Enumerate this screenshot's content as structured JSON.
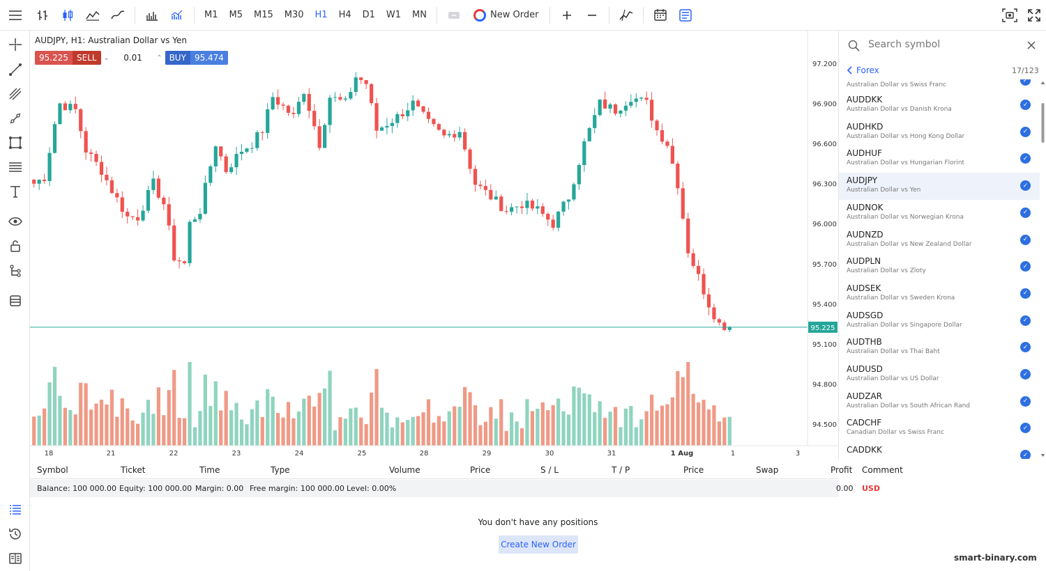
{
  "toolbar": {
    "timeframes": [
      "M1",
      "M5",
      "M15",
      "M30",
      "H1",
      "H4",
      "D1",
      "W1",
      "MN"
    ],
    "active_timeframe": "H1",
    "new_order_label": "New Order"
  },
  "chart": {
    "title": "AUDJPY, H1: Australian Dollar vs Yen",
    "sell_price": "95.225",
    "sell_label": "SELL",
    "lot": "0.01",
    "buy_label": "BUY",
    "buy_price": "95.474",
    "current_price_label": "95.225"
  },
  "chart_data": {
    "type": "candlestick",
    "title": "AUDJPY, H1: Australian Dollar vs Yen",
    "price_ticks": [
      "97.200",
      "96.900",
      "96.600",
      "96.300",
      "96.000",
      "95.700",
      "95.400",
      "95.100",
      "94.800",
      "94.500"
    ],
    "date_ticks": [
      "18",
      "21",
      "22",
      "23",
      "24",
      "25",
      "28",
      "29",
      "30",
      "31",
      "1 Aug",
      "1",
      "3"
    ],
    "ylim": [
      94.35,
      97.3
    ],
    "current_price": 95.225,
    "close_path": [
      [
        0,
        96.3
      ],
      [
        2,
        96.35
      ],
      [
        4,
        96.75
      ],
      [
        5,
        96.9
      ],
      [
        8,
        96.85
      ],
      [
        10,
        96.55
      ],
      [
        13,
        96.4
      ],
      [
        15,
        96.25
      ],
      [
        18,
        96.05
      ],
      [
        20,
        96.05
      ],
      [
        23,
        96.3
      ],
      [
        25,
        96.15
      ],
      [
        27,
        95.75
      ],
      [
        29,
        95.7
      ],
      [
        30,
        96.0
      ],
      [
        32,
        96.1
      ],
      [
        35,
        96.6
      ],
      [
        37,
        96.4
      ],
      [
        40,
        96.55
      ],
      [
        42,
        96.6
      ],
      [
        44,
        96.7
      ],
      [
        46,
        96.95
      ],
      [
        50,
        96.8
      ],
      [
        52,
        97.0
      ],
      [
        55,
        96.6
      ],
      [
        57,
        96.95
      ],
      [
        60,
        96.9
      ],
      [
        62,
        97.1
      ],
      [
        64,
        97.05
      ],
      [
        66,
        96.7
      ],
      [
        68,
        96.75
      ],
      [
        70,
        96.8
      ],
      [
        73,
        96.9
      ],
      [
        76,
        96.75
      ],
      [
        79,
        96.65
      ],
      [
        82,
        96.7
      ],
      [
        85,
        96.3
      ],
      [
        88,
        96.2
      ],
      [
        91,
        96.1
      ],
      [
        94,
        96.15
      ],
      [
        97,
        96.1
      ],
      [
        100,
        96.0
      ],
      [
        103,
        96.2
      ],
      [
        106,
        96.6
      ],
      [
        109,
        96.9
      ],
      [
        112,
        96.85
      ],
      [
        115,
        96.95
      ],
      [
        118,
        96.9
      ],
      [
        120,
        96.7
      ],
      [
        122,
        96.6
      ],
      [
        124,
        96.3
      ],
      [
        126,
        95.8
      ],
      [
        128,
        95.6
      ],
      [
        130,
        95.4
      ],
      [
        132,
        95.25
      ],
      [
        134,
        95.225
      ]
    ],
    "volume_levels": [
      0.3,
      0.6,
      0.9
    ],
    "bearish_color": "#ef9a86",
    "bullish_color": "#8fd4bf",
    "line_color": "#26a69a"
  },
  "positions": {
    "columns": [
      "Symbol",
      "Ticket",
      "Time",
      "Type",
      "Volume",
      "Price",
      "S / L",
      "T / P",
      "Price",
      "Swap",
      "Profit",
      "Comment"
    ],
    "balance_text": "Balance: 100 000.00",
    "equity_text": "Equity: 100 000.00",
    "margin_text": "Margin: 0.00",
    "free_margin_text": "Free margin: 100 000.00",
    "level_text": "Level: 0.00%",
    "profit_value": "0.00",
    "currency": "USD",
    "empty_message": "You don't have any positions",
    "create_label": "Create New Order"
  },
  "symbols_panel": {
    "search_placeholder": "Search symbol",
    "category": "Forex",
    "count": "17/123",
    "cut_top_desc": "Australian Dollar vs Swiss Franc",
    "items": [
      {
        "name": "AUDDKK",
        "desc": "Australian Dollar vs Danish Krona"
      },
      {
        "name": "AUDHKD",
        "desc": "Australian Dollar vs Hong Kong Dollar"
      },
      {
        "name": "AUDHUF",
        "desc": "Australian Dollar vs Hungarian Florint"
      },
      {
        "name": "AUDJPY",
        "desc": "Australian Dollar vs Yen"
      },
      {
        "name": "AUDNOK",
        "desc": "Australian Dollar vs Norwegian Krona"
      },
      {
        "name": "AUDNZD",
        "desc": "Australian Dollar vs New Zealand Dollar"
      },
      {
        "name": "AUDPLN",
        "desc": "Australian Dollar vs Zloty"
      },
      {
        "name": "AUDSEK",
        "desc": "Australian Dollar vs Sweden Krona"
      },
      {
        "name": "AUDSGD",
        "desc": "Australian Dollar vs Singapore Dollar"
      },
      {
        "name": "AUDTHB",
        "desc": "Australian Dollar vs Thai Baht"
      },
      {
        "name": "AUDUSD",
        "desc": "Australian Dollar vs US Dollar"
      },
      {
        "name": "AUDZAR",
        "desc": "Australian Dollar vs South African Rand"
      },
      {
        "name": "CADCHF",
        "desc": "Canadian Dollar vs Swiss Franc"
      },
      {
        "name": "CADDKK",
        "desc": ""
      }
    ],
    "selected": "AUDJPY"
  },
  "watermark": "smart-binary.com",
  "colors": {
    "accent": "#2962ff",
    "sell": "#d9534f",
    "buy": "#4a7fe0",
    "check": "#2e6fe0"
  }
}
